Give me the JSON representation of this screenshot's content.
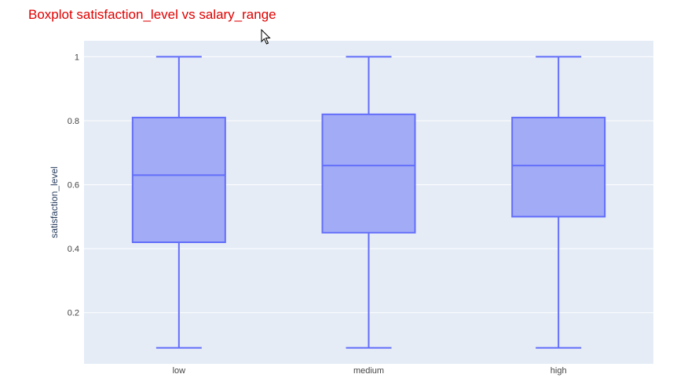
{
  "title": "Boxplot satisfaction_level vs salary_range",
  "colors": {
    "title": "#e00000",
    "plot_bg": "#e5ecf6",
    "grid": "#ffffff",
    "box_fill": "#a2abf5",
    "box_line": "#636efa"
  },
  "chart_data": {
    "type": "box",
    "title": "Boxplot satisfaction_level vs salary_range",
    "xlabel": "",
    "ylabel": "satisfaction_level",
    "ylim": [
      0.04,
      1.05
    ],
    "yticks": [
      "0.2",
      "0.4",
      "0.6",
      "0.8",
      "1"
    ],
    "grid": true,
    "categories": [
      "low",
      "medium",
      "high"
    ],
    "boxes": [
      {
        "category": "low",
        "min": 0.09,
        "q1": 0.42,
        "median": 0.63,
        "q3": 0.81,
        "max": 1.0
      },
      {
        "category": "medium",
        "min": 0.09,
        "q1": 0.45,
        "median": 0.66,
        "q3": 0.82,
        "max": 1.0
      },
      {
        "category": "high",
        "min": 0.09,
        "q1": 0.5,
        "median": 0.66,
        "q3": 0.81,
        "max": 1.0
      }
    ]
  }
}
